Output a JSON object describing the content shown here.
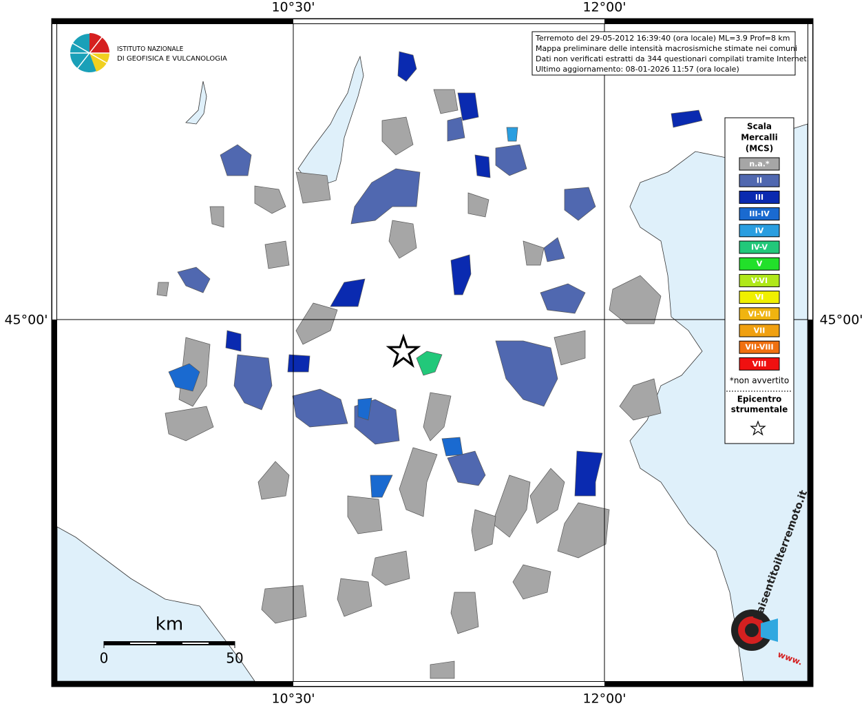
{
  "grid_labels": {
    "lon_1": "10°30'",
    "lon_2": "12°00'",
    "lat_1": "45°00'"
  },
  "institute": {
    "line_1": "ISTITUTO NAZIONALE",
    "line_2": "DI GEOFISICA E VULCANOLOGIA"
  },
  "info": [
    "Terremoto del 29-05-2012 16:39:40 (ora locale) ML=3.9 Prof=8 km",
    "Mappa preliminare delle intensità macrosismiche stimate nei comuni",
    "Dati non verificati estratti da 344 questionari compilati tramite Internet.",
    "Ultimo aggiornamento: 08-01-2026 11:57 (ora locale)"
  ],
  "legend": {
    "title": [
      "Scala",
      "Mercalli",
      "(MCS)"
    ],
    "classes": [
      {
        "label": "n.a.*",
        "color": "#a6a6a6"
      },
      {
        "label": "II",
        "color": "#5068b0"
      },
      {
        "label": "III",
        "color": "#0a2ab0"
      },
      {
        "label": "III-IV",
        "color": "#1a6ad0"
      },
      {
        "label": "IV",
        "color": "#2a9ee0"
      },
      {
        "label": "IV-V",
        "color": "#22c87a"
      },
      {
        "label": "V",
        "color": "#22e02a"
      },
      {
        "label": "V-VI",
        "color": "#b0e81a"
      },
      {
        "label": "VI",
        "color": "#f0f000"
      },
      {
        "label": "VI-VII",
        "color": "#f0b410"
      },
      {
        "label": "VII",
        "color": "#f0a010"
      },
      {
        "label": "VII-VIII",
        "color": "#f07010"
      },
      {
        "label": "VIII",
        "color": "#f01010"
      }
    ],
    "note": "*non avvertito",
    "epicentre": [
      "Epicentro",
      "strumentale"
    ]
  },
  "scale_bar": {
    "unit": "km",
    "start": "0",
    "end": "50"
  },
  "site_logo": {
    "name": "haisentitoilterremoto.it",
    "www": "www."
  }
}
